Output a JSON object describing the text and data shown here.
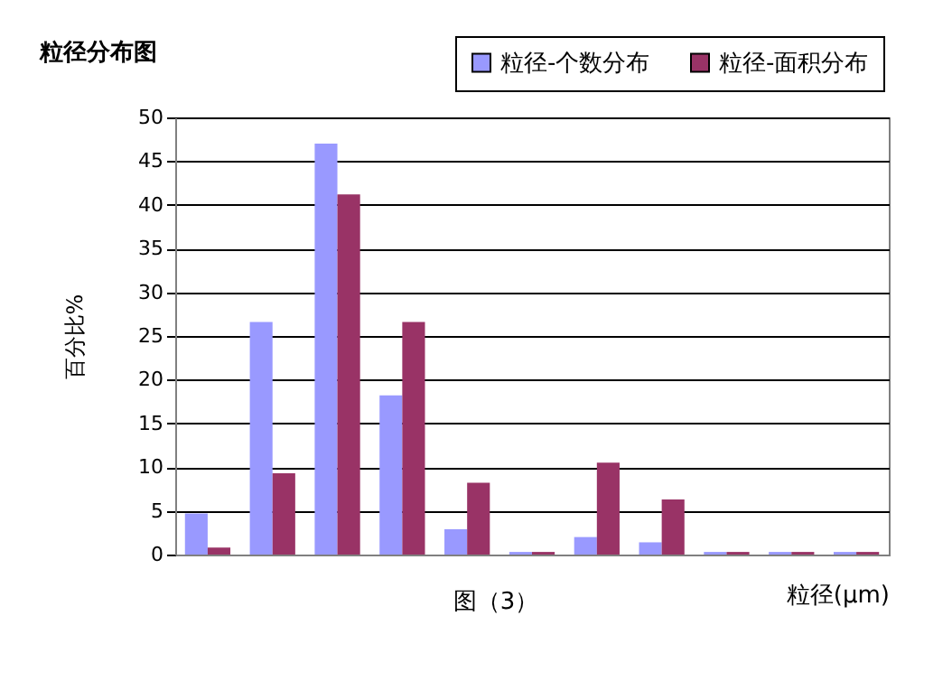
{
  "chart_data": {
    "type": "bar",
    "title": "粒径分布图",
    "xlabel": "粒径(μm)",
    "ylabel": "百分比%",
    "annotations": [
      "图（3）"
    ],
    "categories": [
      null,
      null,
      null,
      null,
      null,
      null,
      null,
      null,
      null,
      null,
      null
    ],
    "series": [
      {
        "name": "粒径-个数分布",
        "color": "#9999ff",
        "values": [
          4.7,
          26.6,
          47,
          18.2,
          2.9,
          0.3,
          2,
          1.4,
          0.3,
          0.3,
          0.3
        ]
      },
      {
        "name": "粒径-面积分布",
        "color": "#993366",
        "values": [
          0.8,
          9.3,
          41.2,
          26.6,
          8.2,
          0.3,
          10.5,
          6.3,
          0.3,
          0.3,
          0.3
        ]
      }
    ],
    "ylim": [
      0,
      50
    ],
    "yticks": [
      0,
      5,
      10,
      15,
      20,
      25,
      30,
      35,
      40,
      45,
      50
    ],
    "grid": "y",
    "legend": "top right"
  }
}
